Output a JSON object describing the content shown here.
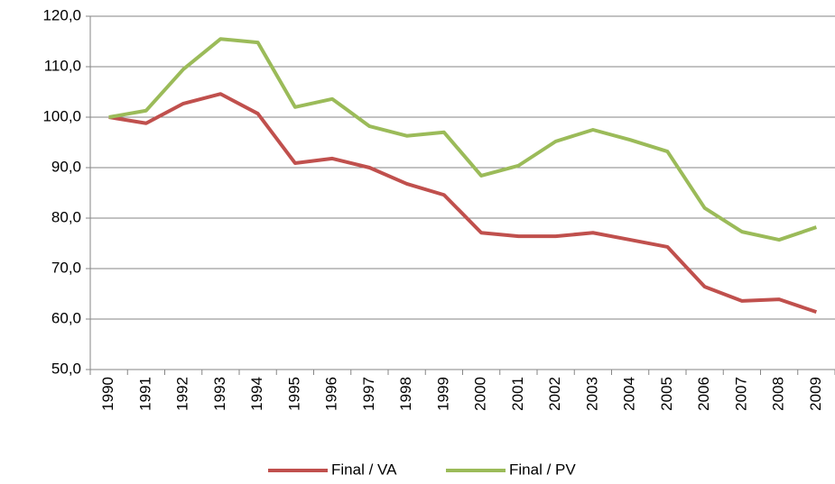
{
  "chart_data": {
    "type": "line",
    "categories": [
      "1990",
      "1991",
      "1992",
      "1993",
      "1994",
      "1995",
      "1996",
      "1997",
      "1998",
      "1999",
      "2000",
      "2001",
      "2002",
      "2003",
      "2004",
      "2005",
      "2006",
      "2007",
      "2008",
      "2009"
    ],
    "series": [
      {
        "name": "Final / VA",
        "color": "#c0504d",
        "values": [
          100.0,
          98.8,
          102.7,
          104.6,
          100.7,
          90.9,
          91.8,
          90.0,
          86.8,
          84.6,
          77.1,
          76.4,
          76.4,
          77.1,
          75.7,
          74.3,
          66.4,
          63.6,
          63.9,
          61.4
        ]
      },
      {
        "name": "Final / PV",
        "color": "#9bbb59",
        "values": [
          100.0,
          101.3,
          109.5,
          115.5,
          114.8,
          102.0,
          103.6,
          98.2,
          96.3,
          97.0,
          88.4,
          90.4,
          95.2,
          97.5,
          95.5,
          93.2,
          82.0,
          77.3,
          75.7,
          78.2
        ]
      }
    ],
    "ylim": [
      50,
      120
    ],
    "yticks": [
      {
        "value": 50,
        "label": "50,0"
      },
      {
        "value": 60,
        "label": "60,0"
      },
      {
        "value": 70,
        "label": "70,0"
      },
      {
        "value": 80,
        "label": "80,0"
      },
      {
        "value": 90,
        "label": "90,0"
      },
      {
        "value": 100,
        "label": "100,0"
      },
      {
        "value": 110,
        "label": "110,0"
      },
      {
        "value": 120,
        "label": "120,0"
      }
    ],
    "grid": true,
    "legend": "bottom"
  }
}
